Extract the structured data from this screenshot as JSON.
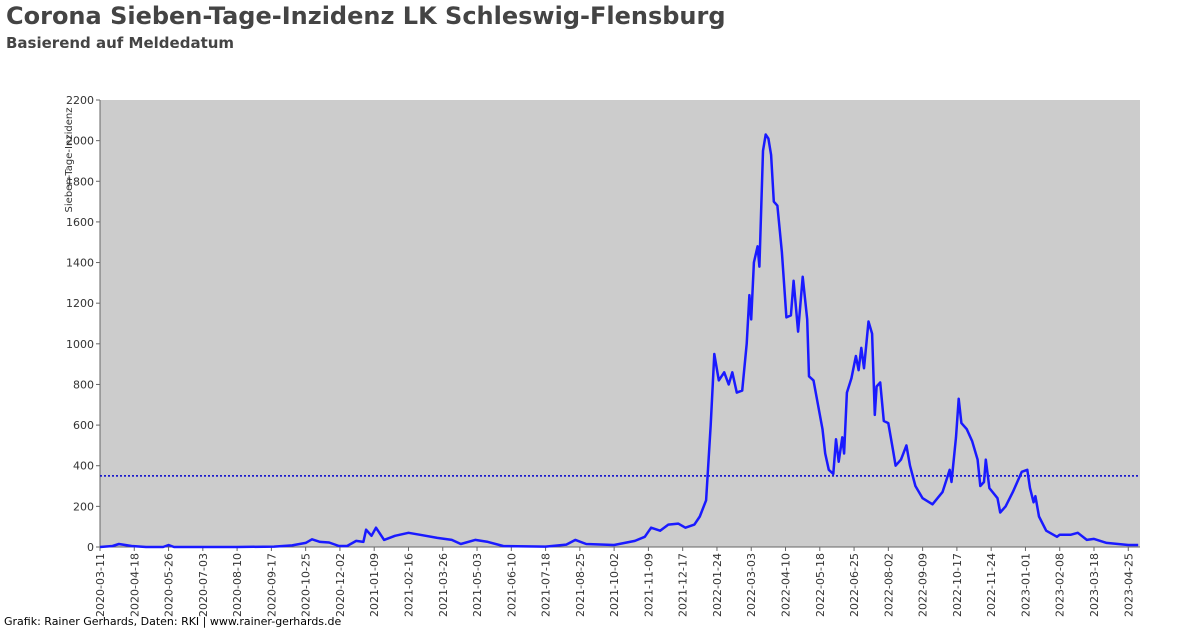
{
  "chart_data": {
    "type": "line",
    "title": "Corona Sieben-Tage-Inzidenz LK Schleswig-Flensburg",
    "subtitle": "Basierend auf Meldedatum",
    "y_label": "Sieben-Tage-Inzidenz",
    "footer": "Grafik: Rainer Gerhards, Daten: RKI | www.rainer-gerhards.de",
    "threshold": 350,
    "xlim": [
      "2020-03-11",
      "2023-05-08"
    ],
    "xticks": [
      "2020-03-11",
      "2020-04-18",
      "2020-05-26",
      "2020-07-03",
      "2020-08-10",
      "2020-09-17",
      "2020-10-25",
      "2020-12-02",
      "2021-01-09",
      "2021-02-16",
      "2021-03-26",
      "2021-05-03",
      "2021-06-10",
      "2021-07-18",
      "2021-08-25",
      "2021-10-02",
      "2021-11-09",
      "2021-12-17",
      "2022-01-24",
      "2022-03-03",
      "2022-04-10",
      "2022-05-18",
      "2022-06-25",
      "2022-08-02",
      "2022-09-09",
      "2022-10-17",
      "2022-11-24",
      "2023-01-01",
      "2023-02-08",
      "2023-03-18",
      "2023-04-25"
    ],
    "ylim": [
      0,
      2200
    ],
    "yticks": [
      0,
      200,
      400,
      600,
      800,
      1000,
      1200,
      1400,
      1600,
      1800,
      2000,
      2200
    ],
    "x": [
      "2020-03-11",
      "2020-03-25",
      "2020-04-01",
      "2020-04-15",
      "2020-05-01",
      "2020-05-20",
      "2020-05-26",
      "2020-06-01",
      "2020-08-10",
      "2020-09-20",
      "2020-10-10",
      "2020-10-25",
      "2020-11-01",
      "2020-11-10",
      "2020-11-20",
      "2020-12-01",
      "2020-12-10",
      "2020-12-20",
      "2020-12-28",
      "2020-12-31",
      "2021-01-06",
      "2021-01-11",
      "2021-01-20",
      "2021-02-01",
      "2021-02-16",
      "2021-03-01",
      "2021-03-20",
      "2021-04-05",
      "2021-04-15",
      "2021-05-01",
      "2021-05-15",
      "2021-06-01",
      "2021-07-18",
      "2021-08-10",
      "2021-08-20",
      "2021-09-01",
      "2021-10-02",
      "2021-10-25",
      "2021-11-05",
      "2021-11-12",
      "2021-11-22",
      "2021-12-01",
      "2021-12-12",
      "2021-12-20",
      "2021-12-30",
      "2022-01-05",
      "2022-01-12",
      "2022-01-17",
      "2022-01-21",
      "2022-01-26",
      "2022-02-01",
      "2022-02-06",
      "2022-02-10",
      "2022-02-15",
      "2022-02-21",
      "2022-02-26",
      "2022-03-01",
      "2022-03-03",
      "2022-03-06",
      "2022-03-10",
      "2022-03-12",
      "2022-03-16",
      "2022-03-19",
      "2022-03-22",
      "2022-03-25",
      "2022-03-28",
      "2022-04-01",
      "2022-04-06",
      "2022-04-11",
      "2022-04-16",
      "2022-04-19",
      "2022-04-24",
      "2022-04-29",
      "2022-05-04",
      "2022-05-06",
      "2022-05-11",
      "2022-05-16",
      "2022-05-21",
      "2022-05-24",
      "2022-05-28",
      "2022-06-02",
      "2022-06-05",
      "2022-06-08",
      "2022-06-12",
      "2022-06-14",
      "2022-06-17",
      "2022-06-22",
      "2022-06-27",
      "2022-06-30",
      "2022-07-03",
      "2022-07-06",
      "2022-07-11",
      "2022-07-15",
      "2022-07-18",
      "2022-07-20",
      "2022-07-24",
      "2022-07-28",
      "2022-08-02",
      "2022-08-07",
      "2022-08-10",
      "2022-08-16",
      "2022-08-22",
      "2022-08-26",
      "2022-09-01",
      "2022-09-09",
      "2022-09-20",
      "2022-10-01",
      "2022-10-09",
      "2022-10-11",
      "2022-10-16",
      "2022-10-19",
      "2022-10-22",
      "2022-10-28",
      "2022-11-03",
      "2022-11-09",
      "2022-11-12",
      "2022-11-16",
      "2022-11-18",
      "2022-11-22",
      "2022-12-01",
      "2022-12-04",
      "2022-12-10",
      "2022-12-18",
      "2022-12-24",
      "2022-12-28",
      "2023-01-03",
      "2023-01-06",
      "2023-01-10",
      "2023-01-12",
      "2023-01-16",
      "2023-01-24",
      "2023-02-05",
      "2023-02-08",
      "2023-02-20",
      "2023-02-28",
      "2023-03-10",
      "2023-03-18",
      "2023-04-01",
      "2023-04-25",
      "2023-05-06"
    ],
    "series": [
      {
        "name": "Sieben-Tage-Inzidenz",
        "color": "#1a1aff",
        "values": [
          0,
          5,
          15,
          5,
          0,
          0,
          10,
          0,
          0,
          2,
          8,
          20,
          38,
          25,
          22,
          5,
          5,
          30,
          25,
          85,
          55,
          95,
          35,
          55,
          70,
          60,
          45,
          35,
          15,
          35,
          25,
          5,
          2,
          12,
          35,
          15,
          10,
          30,
          50,
          95,
          80,
          110,
          115,
          95,
          110,
          150,
          230,
          600,
          950,
          820,
          860,
          800,
          860,
          760,
          770,
          1000,
          1240,
          1120,
          1400,
          1480,
          1380,
          1950,
          2030,
          2010,
          1930,
          1700,
          1680,
          1450,
          1130,
          1140,
          1310,
          1060,
          1330,
          1120,
          840,
          820,
          700,
          580,
          460,
          380,
          360,
          530,
          420,
          540,
          460,
          760,
          830,
          940,
          870,
          980,
          880,
          1110,
          1050,
          650,
          790,
          810,
          620,
          610,
          480,
          400,
          430,
          500,
          400,
          300,
          240,
          210,
          270,
          380,
          320,
          540,
          730,
          610,
          580,
          520,
          430,
          300,
          320,
          430,
          290,
          240,
          170,
          200,
          270,
          330,
          370,
          380,
          290,
          220,
          250,
          150,
          80,
          50,
          60,
          60,
          70,
          35,
          40,
          20,
          10,
          10
        ]
      }
    ]
  }
}
